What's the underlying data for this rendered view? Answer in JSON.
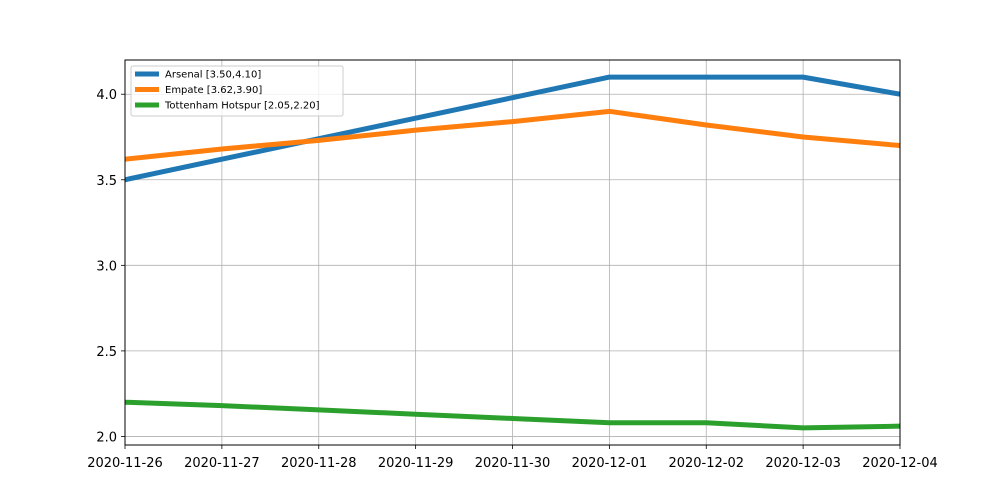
{
  "chart_data": {
    "type": "line",
    "title": "",
    "xlabel": "",
    "ylabel": "",
    "x": [
      "2020-11-26",
      "2020-11-27",
      "2020-11-28",
      "2020-11-29",
      "2020-11-30",
      "2020-12-01",
      "2020-12-02",
      "2020-12-03",
      "2020-12-04"
    ],
    "y_ticks": [
      "2.0",
      "2.5",
      "3.0",
      "3.5",
      "4.0"
    ],
    "ylim": [
      1.95,
      4.2
    ],
    "grid": true,
    "legend_position": "top-left",
    "series": [
      {
        "name": "Arsenal [3.50,4.10]",
        "color": "#1f77b4",
        "values": [
          3.5,
          3.62,
          3.74,
          3.86,
          3.98,
          4.1,
          4.1,
          4.1,
          4.0
        ]
      },
      {
        "name": "Empate [3.62,3.90]",
        "color": "#ff7f0e",
        "values": [
          3.62,
          3.68,
          3.73,
          3.79,
          3.84,
          3.9,
          3.82,
          3.75,
          3.7
        ]
      },
      {
        "name": "Tottenham Hotspur [2.05,2.20]",
        "color": "#2ca02c",
        "values": [
          2.2,
          2.18,
          2.155,
          2.13,
          2.105,
          2.08,
          2.08,
          2.05,
          2.06
        ]
      }
    ]
  }
}
